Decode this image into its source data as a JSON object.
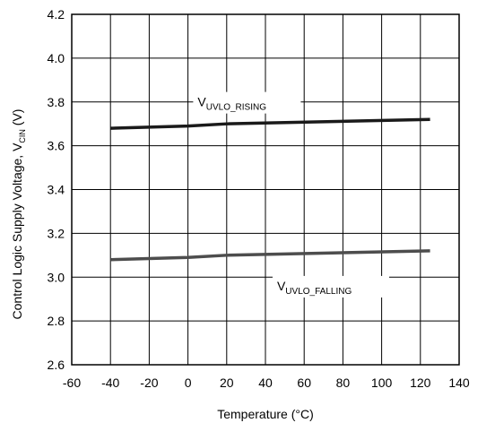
{
  "chart_data": {
    "type": "line",
    "xlabel": "Temperature (°C)",
    "ylabel": {
      "main": "Control Logic Supply Voltage, V",
      "sub": "CIN",
      "suffix": " (V)"
    },
    "xlim": [
      -60,
      140
    ],
    "ylim": [
      2.6,
      4.2
    ],
    "xticks": [
      "-60",
      "-40",
      "-20",
      "0",
      "20",
      "40",
      "60",
      "80",
      "100",
      "120",
      "140"
    ],
    "yticks": [
      "2.6",
      "2.8",
      "3.0",
      "3.2",
      "3.4",
      "3.6",
      "3.8",
      "4.0",
      "4.2"
    ],
    "grid": true,
    "series": [
      {
        "name": "V_UVLO_RISING",
        "label_main": "V",
        "label_sub": "UVLO_RISING",
        "color": "#1a1a1a",
        "x": [
          -40,
          0,
          20,
          125
        ],
        "y": [
          3.68,
          3.69,
          3.7,
          3.72
        ]
      },
      {
        "name": "V_UVLO_FALLING",
        "label_main": "V",
        "label_sub": "UVLO_FALLING",
        "color": "#4d4d4d",
        "x": [
          -40,
          0,
          20,
          125
        ],
        "y": [
          3.08,
          3.09,
          3.1,
          3.12
        ]
      }
    ]
  }
}
